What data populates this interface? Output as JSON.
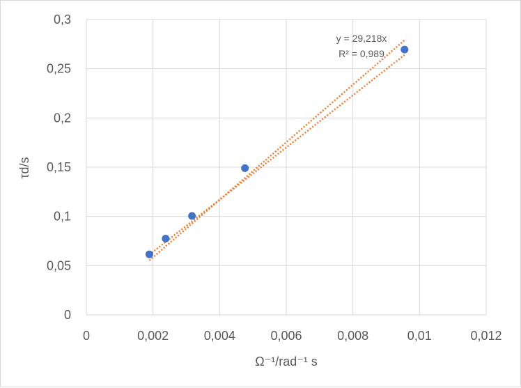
{
  "chart_data": {
    "type": "scatter",
    "title": "",
    "xlabel": "Ω⁻¹/rad⁻¹ s",
    "ylabel": "τd/s",
    "xlim": [
      0,
      0.012
    ],
    "ylim": [
      0,
      0.3
    ],
    "x_ticks": [
      0,
      0.002,
      0.004,
      0.006,
      0.008,
      0.01,
      0.012
    ],
    "x_tick_labels": [
      "0",
      "0,002",
      "0,004",
      "0,006",
      "0,008",
      "0,01",
      "0,012"
    ],
    "y_ticks": [
      0,
      0.05,
      0.1,
      0.15,
      0.2,
      0.25,
      0.3
    ],
    "y_tick_labels": [
      "0",
      "0,05",
      "0,1",
      "0,15",
      "0,2",
      "0,25",
      "0,3"
    ],
    "grid": true,
    "legend": "none",
    "series": [
      {
        "x": [
          0.00189,
          0.00238,
          0.00317,
          0.00476,
          0.00955
        ],
        "y": [
          0.0615,
          0.0775,
          0.1005,
          0.149,
          0.2695
        ],
        "color": "#4472c4"
      }
    ],
    "trendlines": [
      {
        "slope": 29.218,
        "intercept": 0,
        "x_range": [
          0.00189,
          0.00955
        ],
        "color": "#ed7d31",
        "style": "dotted"
      },
      {
        "slope": 26.5,
        "intercept": 0.011,
        "x_range": [
          0.00189,
          0.00955
        ],
        "color": "#ed7d31",
        "style": "dotted"
      }
    ],
    "annotations": {
      "equation": "y = 29,218x",
      "r_squared": "R² = 0,989"
    },
    "colors": {
      "grid": "#d9d9d9",
      "text": "#595959",
      "marker": "#4472c4",
      "trend": "#ed7d31"
    }
  }
}
